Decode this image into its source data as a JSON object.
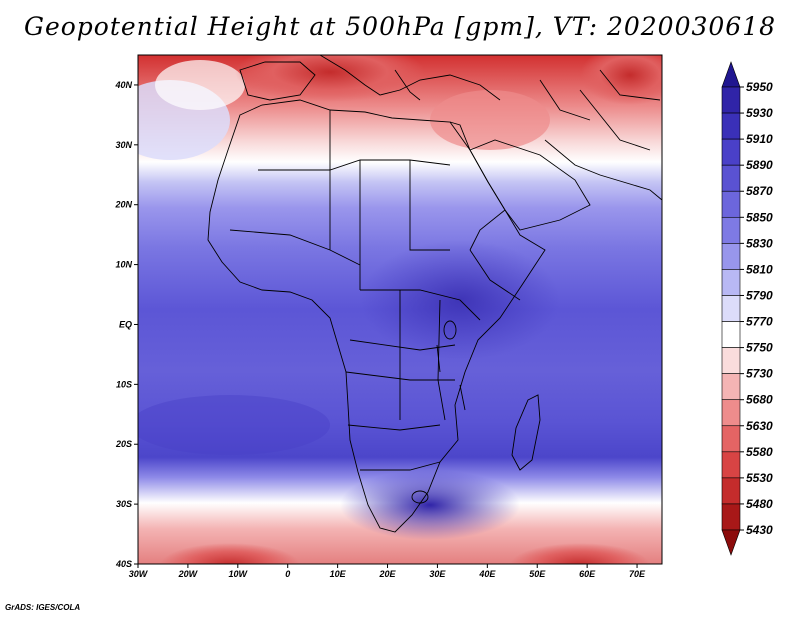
{
  "title": "Geopotential Height at 500hPa [gpm], VT: 2020030618",
  "footer": "GrADS: IGES/COLA",
  "map": {
    "lat_labels": [
      {
        "lat": 40,
        "label": "40N"
      },
      {
        "lat": 30,
        "label": "30N"
      },
      {
        "lat": 20,
        "label": "20N"
      },
      {
        "lat": 10,
        "label": "10N"
      },
      {
        "lat": 0,
        "label": "EQ"
      },
      {
        "lat": -10,
        "label": "10S"
      },
      {
        "lat": -20,
        "label": "20S"
      },
      {
        "lat": -30,
        "label": "30S"
      },
      {
        "lat": -40,
        "label": "40S"
      }
    ],
    "lon_labels": [
      {
        "lon": -30,
        "label": "30W"
      },
      {
        "lon": -20,
        "label": "20W"
      },
      {
        "lon": -10,
        "label": "10W"
      },
      {
        "lon": 0,
        "label": "0"
      },
      {
        "lon": 10,
        "label": "10E"
      },
      {
        "lon": 20,
        "label": "20E"
      },
      {
        "lon": 30,
        "label": "30E"
      },
      {
        "lon": 40,
        "label": "40E"
      },
      {
        "lon": 50,
        "label": "50E"
      },
      {
        "lon": 60,
        "label": "60E"
      },
      {
        "lon": 70,
        "label": "70E"
      }
    ],
    "lon_range": [
      -30,
      75
    ],
    "lat_range": [
      -40,
      45
    ]
  },
  "colorbar": {
    "levels": [
      "5950",
      "5930",
      "5910",
      "5890",
      "5870",
      "5850",
      "5830",
      "5810",
      "5790",
      "5770",
      "5750",
      "5730",
      "5680",
      "5630",
      "5580",
      "5530",
      "5480",
      "5430"
    ],
    "colors": [
      "#201690",
      "#3024a8",
      "#3a30b8",
      "#4a40c8",
      "#5a52d2",
      "#6c66dc",
      "#7e7ae4",
      "#9896ec",
      "#b8b8f4",
      "#dcdcfa",
      "#ffffff",
      "#fadcdc",
      "#f4b4b4",
      "#ee8c8c",
      "#e46464",
      "#d84444",
      "#c42c2c",
      "#a81818",
      "#8c0c0c"
    ]
  }
}
